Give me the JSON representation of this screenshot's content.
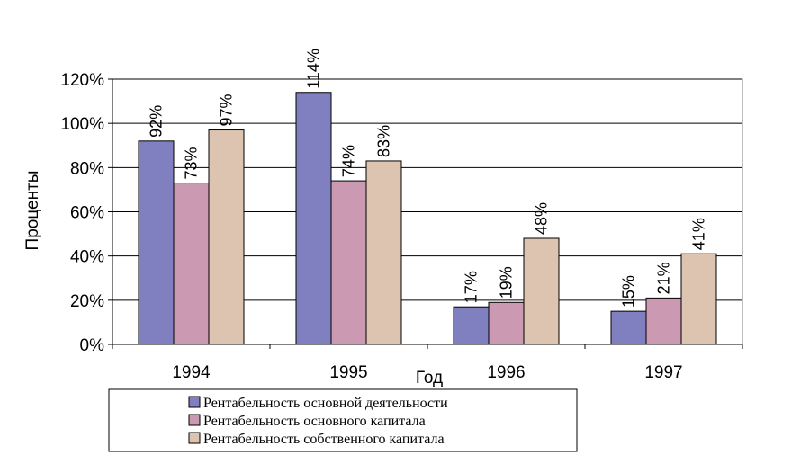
{
  "chart_data": {
    "type": "bar",
    "title": "",
    "xlabel": "Год",
    "ylabel": "Проценты",
    "categories": [
      "1994",
      "1995",
      "1996",
      "1997"
    ],
    "ylim": [
      0,
      120
    ],
    "yticks": [
      0,
      20,
      40,
      60,
      80,
      100,
      120
    ],
    "ytick_labels": [
      "0%",
      "20%",
      "40%",
      "60%",
      "80%",
      "100%",
      "120%"
    ],
    "grid": true,
    "legend_position": "bottom",
    "series": [
      {
        "name": "Рентабельность основной деятельности",
        "color": "#8080c0",
        "values": [
          92,
          114,
          17,
          15
        ],
        "labels": [
          "92%",
          "114%",
          "17%",
          "15%"
        ]
      },
      {
        "name": "Рентабельность основного капитала",
        "color": "#cc99b3",
        "values": [
          73,
          74,
          19,
          21
        ],
        "labels": [
          "73%",
          "74%",
          "19%",
          "21%"
        ]
      },
      {
        "name": "Рентабельность собственного капитала",
        "color": "#dcc4b0",
        "values": [
          97,
          83,
          48,
          41
        ],
        "labels": [
          "97%",
          "83%",
          "48%",
          "41%"
        ]
      }
    ]
  }
}
